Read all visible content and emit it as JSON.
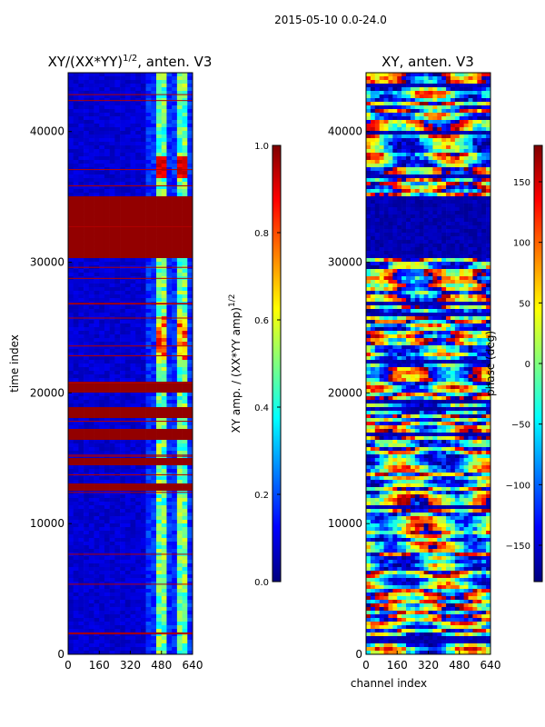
{
  "suptitle": "2015-05-10 0.0-24.0",
  "colormap": [
    "#00007f",
    "#0000ff",
    "#007fff",
    "#00ffff",
    "#7fff7f",
    "#ffff00",
    "#ff7f00",
    "#ff0000",
    "#7f0000"
  ],
  "chart_data": [
    {
      "type": "heatmap",
      "title": "XY/(XX*YY)^(1/2), anten. V3",
      "title_main": "XY/(XX*YY)",
      "title_exp": "1/2",
      "title_tail": ", anten. V3",
      "xlabel": "",
      "ylabel": "time index",
      "xlim": [
        0,
        640
      ],
      "ylim": [
        0,
        44500
      ],
      "xticks": [
        "0",
        "160",
        "320",
        "480",
        "640"
      ],
      "yticks": [
        "0",
        "10000",
        "20000",
        "30000",
        "40000"
      ],
      "colorbar": {
        "label": "XY amp. / (XX*YY amp)^(1/2)",
        "label_main": "XY amp. / (XX*YY amp)",
        "label_exp": "1/2",
        "range": [
          0.0,
          1.0
        ],
        "ticks": [
          "0.0",
          "0.2",
          "0.4",
          "0.6",
          "0.8",
          "1.0"
        ]
      },
      "saturated_bands_time_index": [
        [
          30200,
          35000
        ],
        [
          20000,
          20800
        ],
        [
          18000,
          19000
        ],
        [
          16400,
          17200
        ],
        [
          14400,
          15000
        ],
        [
          12600,
          13000
        ]
      ],
      "high_amplitude_channel_range": [
        400,
        640
      ]
    },
    {
      "type": "heatmap",
      "title": "XY, anten. V3",
      "xlabel": "channel index",
      "ylabel": "",
      "xlim": [
        0,
        640
      ],
      "ylim": [
        0,
        44500
      ],
      "xticks": [
        "0",
        "160",
        "320",
        "480",
        "640"
      ],
      "yticks": [
        "0",
        "10000",
        "20000",
        "30000",
        "40000"
      ],
      "colorbar": {
        "label": "phase (deg)",
        "range": [
          -180,
          180
        ],
        "ticks": [
          "−150",
          "−100",
          "−50",
          "0",
          "50",
          "100",
          "150"
        ]
      }
    }
  ]
}
